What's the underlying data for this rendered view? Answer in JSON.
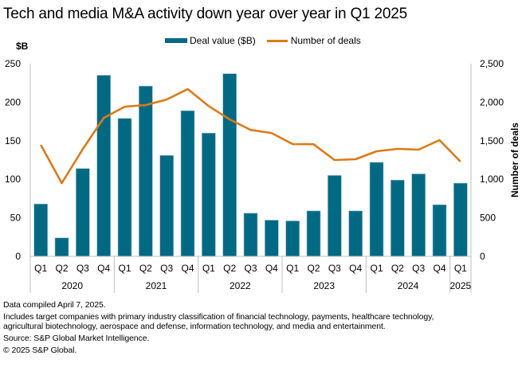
{
  "title": "Tech and media M&A activity down year over year in Q1 2025",
  "colors": {
    "bar": "#006a85",
    "line": "#dc7a14",
    "axis": "#bfbfbf",
    "text": "#000000"
  },
  "notes": {
    "compiled": "Data compiled April 7, 2025.",
    "includes_1": "Includes target companies with primary industry classification of financial technology, payments, healthcare technology,",
    "includes_2": "agricultural biotechnology, aerospace and defense, information technology, and media and entertainment.",
    "source": "Source: S&P Global Market Intelligence.",
    "copyright": "© 2025 S&P Global."
  },
  "chart_data": {
    "type": "bar",
    "title": "Tech and media M&A activity down year over year in Q1 2025",
    "legend_position": "top-center",
    "categories": [
      "Q1",
      "Q2",
      "Q3",
      "Q4",
      "Q1",
      "Q2",
      "Q3",
      "Q4",
      "Q1",
      "Q2",
      "Q3",
      "Q4",
      "Q1",
      "Q2",
      "Q3",
      "Q4",
      "Q1",
      "Q2",
      "Q3",
      "Q4",
      "Q1"
    ],
    "year_groups": [
      {
        "label": "2020",
        "count": 4
      },
      {
        "label": "2021",
        "count": 4
      },
      {
        "label": "2022",
        "count": 4
      },
      {
        "label": "2023",
        "count": 4
      },
      {
        "label": "2024",
        "count": 4
      },
      {
        "label": "2025",
        "count": 1
      }
    ],
    "series": [
      {
        "name": "Deal value ($B)",
        "type": "bar",
        "axis": "left",
        "values": [
          68,
          24,
          114,
          235,
          179,
          221,
          131,
          189,
          160,
          237,
          56,
          47,
          46,
          59,
          105,
          59,
          122,
          99,
          107,
          67,
          95
        ]
      },
      {
        "name": "Number of deals",
        "type": "line",
        "axis": "right",
        "values": [
          1446,
          950,
          1390,
          1797,
          1942,
          1963,
          2035,
          2170,
          1950,
          1777,
          1640,
          1600,
          1457,
          1455,
          1250,
          1260,
          1364,
          1395,
          1384,
          1508,
          1229
        ]
      }
    ],
    "y_left": {
      "label": "$B",
      "range": [
        0,
        250
      ],
      "ticks": [
        "0",
        "50",
        "100",
        "150",
        "200",
        "250"
      ]
    },
    "y_right": {
      "label": "Number of deals",
      "range": [
        0,
        2500
      ],
      "ticks": [
        "0",
        "500",
        "1,000",
        "1,500",
        "2,000",
        "2,500"
      ]
    },
    "grid": false
  }
}
